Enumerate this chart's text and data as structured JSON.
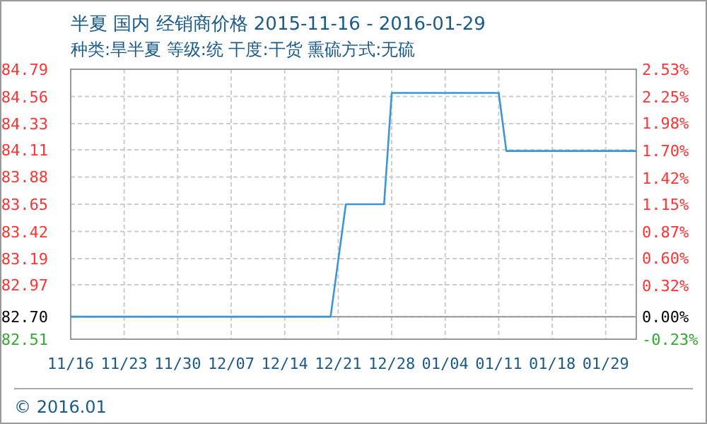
{
  "chart_data": {
    "type": "line",
    "title": "半夏 国内 经销商价格 2015-11-16 - 2016-01-29",
    "subtitle": "种类:旱半夏 等级:统 干度:干货 熏硫方式:无硫",
    "x": [
      "2015-11-16",
      "2015-12-20",
      "2015-12-22",
      "2015-12-27",
      "2015-12-28",
      "2016-01-11",
      "2016-01-12",
      "2016-01-29"
    ],
    "series": [
      {
        "color": "#3a96d8",
        "values": [
          82.7,
          82.7,
          83.65,
          83.65,
          84.59,
          84.59,
          84.1,
          84.1
        ]
      }
    ],
    "xlim": [
      "2015-11-16",
      "2016-01-29"
    ],
    "xticks": [
      {
        "value": "2015-11-16",
        "label": "11/16"
      },
      {
        "value": "2015-11-23",
        "label": "11/23"
      },
      {
        "value": "2015-11-30",
        "label": "11/30"
      },
      {
        "value": "2015-12-07",
        "label": "12/07"
      },
      {
        "value": "2015-12-14",
        "label": "12/14"
      },
      {
        "value": "2015-12-21",
        "label": "12/21"
      },
      {
        "value": "2015-12-28",
        "label": "12/28"
      },
      {
        "value": "2016-01-04",
        "label": "01/04"
      },
      {
        "value": "2016-01-11",
        "label": "01/11"
      },
      {
        "value": "2016-01-18",
        "label": "01/18"
      },
      {
        "value": "2016-01-25",
        "label": "01/29"
      }
    ],
    "ylim": [
      82.51,
      84.79
    ],
    "yticks": [
      {
        "value": 82.51,
        "label": "82.51"
      },
      {
        "value": 82.7,
        "label": "82.70"
      },
      82.97,
      83.19,
      83.42,
      83.65,
      83.88,
      84.11,
      84.33,
      84.56,
      84.79
    ],
    "y2lim": [
      -0.23,
      2.53
    ],
    "y2ticks": [
      {
        "value": -0.23,
        "label": "-0.23%"
      },
      {
        "value": 0,
        "label": "0.00%"
      },
      {
        "value": 0.32,
        "label": "0.32%"
      },
      {
        "value": 0.6,
        "label": "0.60%"
      },
      {
        "value": 0.87,
        "label": "0.87%"
      },
      {
        "value": 1.15,
        "label": "1.15%"
      },
      {
        "value": 1.42,
        "label": "1.42%"
      },
      {
        "value": 1.7,
        "label": "1.70%"
      },
      {
        "value": 1.98,
        "label": "1.98%"
      },
      {
        "value": 2.25,
        "label": "2.25%"
      },
      {
        "value": 2.53,
        "label": "2.53%"
      }
    ],
    "ref_lines": [
      {
        "axis": "y",
        "value": 82.7,
        "color": "#999999"
      }
    ],
    "grid": true,
    "annotations": [
      "© 2016.01"
    ]
  }
}
